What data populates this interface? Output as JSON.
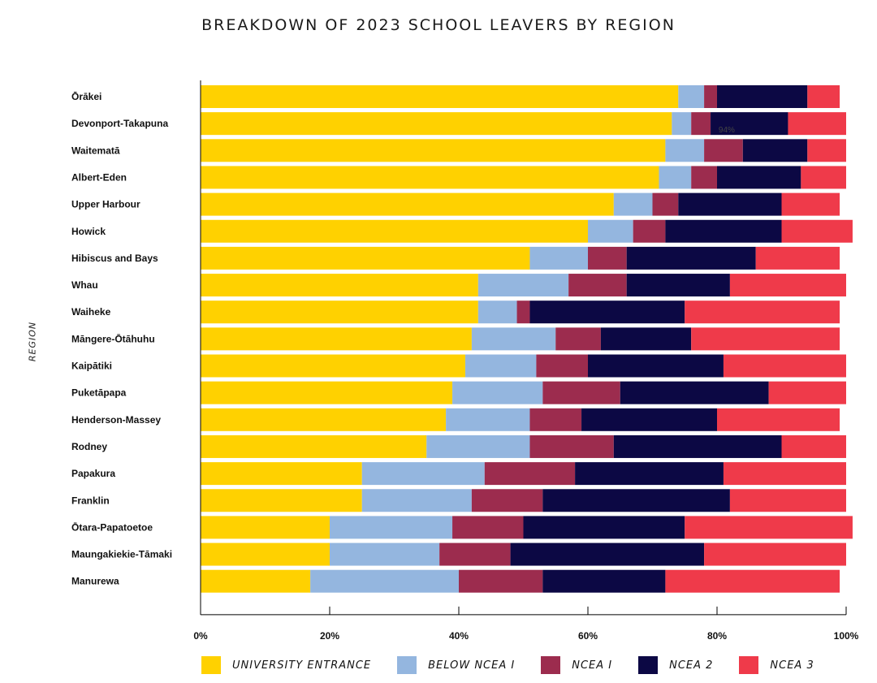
{
  "chart_data": {
    "type": "bar",
    "orientation": "horizontal",
    "stacked": true,
    "title": "BREAKDOWN OF 2023 SCHOOL LEAVERS BY REGION",
    "ylabel": "REGION",
    "xlabel": "",
    "xlim": [
      0,
      100
    ],
    "x_ticks": [
      "0%",
      "20%",
      "40%",
      "60%",
      "80%",
      "100%"
    ],
    "grid": false,
    "legend_position": "bottom",
    "annotations": [
      {
        "text": "94%",
        "region": "Devonport-Takapuna"
      }
    ],
    "categories": [
      "Ōrākei",
      "Devonport-Takapuna",
      "Waitematā",
      "Albert-Eden",
      "Upper Harbour",
      "Howick",
      "Hibiscus and Bays",
      "Whau",
      "Waiheke",
      "Māngere-Ōtāhuhu",
      "Kaipātiki",
      "Puketāpapa",
      "Henderson-Massey",
      "Rodney",
      "Papakura",
      "Franklin",
      "Ōtara-Papatoetoe",
      "Maungakiekie-Tāmaki",
      "Manurewa"
    ],
    "series": [
      {
        "name": "UNIVERSITY ENTRANCE",
        "color": "#FFD100",
        "values": [
          74,
          73,
          72,
          71,
          64,
          60,
          51,
          43,
          43,
          42,
          41,
          39,
          38,
          35,
          25,
          25,
          20,
          20,
          17
        ]
      },
      {
        "name": "BELOW NCEA I",
        "color": "#94B6DF",
        "values": [
          4,
          3,
          6,
          5,
          6,
          7,
          9,
          14,
          6,
          13,
          11,
          14,
          13,
          16,
          19,
          17,
          19,
          17,
          23
        ]
      },
      {
        "name": "NCEA I",
        "color": "#9C2C4E",
        "values": [
          2,
          3,
          6,
          4,
          4,
          5,
          6,
          9,
          2,
          7,
          8,
          12,
          8,
          13,
          14,
          11,
          11,
          11,
          13
        ]
      },
      {
        "name": "NCEA 2",
        "color": "#0C0844",
        "values": [
          14,
          12,
          10,
          13,
          16,
          18,
          20,
          16,
          24,
          14,
          21,
          23,
          21,
          26,
          23,
          29,
          25,
          30,
          19
        ]
      },
      {
        "name": "NCEA 3",
        "color": "#EF3A4A",
        "values": [
          5,
          9,
          6,
          7,
          9,
          11,
          13,
          18,
          24,
          23,
          19,
          12,
          19,
          10,
          19,
          18,
          26,
          22,
          27
        ]
      }
    ]
  }
}
